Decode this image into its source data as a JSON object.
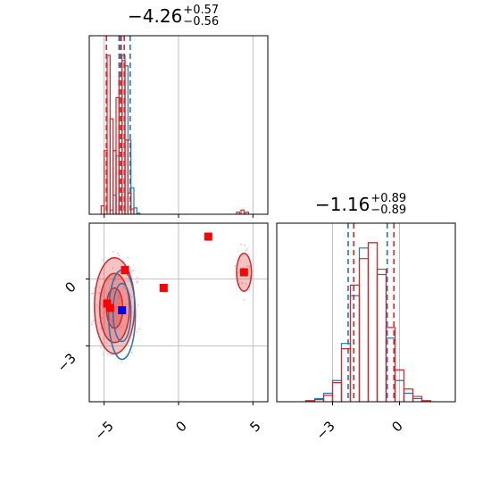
{
  "figure": {
    "type": "corner_plot",
    "colors": {
      "series_a": "#1f77b4",
      "series_b": "#d62728",
      "pink": "#f4a6c1",
      "grid": "#b0b0b0"
    }
  },
  "titles": [
    {
      "value": "−4.26",
      "plus": "+0.57",
      "minus": "−0.56"
    },
    {
      "value": "−1.16",
      "plus": "+0.89",
      "minus": "−0.89"
    }
  ],
  "chart_data": [
    {
      "type": "histogram",
      "panel": "top-left marginal",
      "xlim": [
        -6,
        6
      ],
      "grid": true,
      "series": [
        {
          "color": "#1f77b4",
          "x": [
            -4.5,
            -4.3,
            -4.1,
            -3.9,
            -3.7,
            -3.5,
            -3.3,
            -3.1,
            -2.9,
            -2.7
          ],
          "values": [
            4,
            18,
            55,
            110,
            150,
            140,
            70,
            25,
            6,
            1
          ],
          "quantile_lines": [
            -4.0,
            -3.85,
            -3.25
          ]
        },
        {
          "color": "#d62728",
          "x": [
            -5.1,
            -4.9,
            -4.7,
            -4.5,
            -4.3,
            -4.1,
            -3.9,
            -3.7,
            -3.5,
            -3.3,
            -3.1,
            4.0,
            4.3,
            4.6
          ],
          "values": [
            8,
            60,
            150,
            90,
            60,
            110,
            130,
            145,
            70,
            20,
            5,
            2,
            4,
            2
          ],
          "quantile_lines": [
            -4.85,
            -3.9,
            -3.65
          ]
        }
      ]
    },
    {
      "type": "histogram",
      "panel": "bottom-right marginal",
      "xlim": [
        -5.5,
        2.5
      ],
      "xticks": [
        -3,
        0
      ],
      "xtick_labels": [
        "−3",
        "0"
      ],
      "grid": true,
      "series": [
        {
          "color": "#1f77b4",
          "quantile_lines": [
            -2.3,
            -0.55
          ],
          "x": [
            -4.0,
            -3.6,
            -3.2,
            -2.8,
            -2.4,
            -2.0,
            -1.6,
            -1.2,
            -0.8,
            -0.4,
            0.0,
            0.4,
            0.8,
            1.2
          ],
          "values": [
            1,
            3,
            8,
            20,
            55,
            100,
            145,
            150,
            120,
            60,
            20,
            8,
            3,
            1
          ]
        },
        {
          "color": "#d62728",
          "quantile_lines": [
            -2.05,
            -0.25
          ],
          "x": [
            -4.0,
            -3.6,
            -3.2,
            -2.8,
            -2.4,
            -2.0,
            -1.6,
            -1.2,
            -0.8,
            -0.4,
            0.0,
            0.4,
            0.8,
            1.2
          ],
          "values": [
            1,
            2,
            6,
            18,
            50,
            110,
            135,
            150,
            125,
            70,
            30,
            12,
            5,
            1
          ]
        }
      ]
    },
    {
      "type": "scatter",
      "panel": "bottom-left 2D",
      "xlim": [
        -6,
        6
      ],
      "ylim": [
        -5.5,
        2.5
      ],
      "xticks": [
        -5,
        0,
        5
      ],
      "xtick_labels": [
        "−5",
        "0",
        "5"
      ],
      "yticks": [
        0,
        -3
      ],
      "ytick_labels": [
        "0",
        "−3"
      ],
      "grid": true,
      "markers": [
        {
          "color": "#ff0000",
          "x": 2.0,
          "y": 1.9
        },
        {
          "color": "#ff0000",
          "x": 4.4,
          "y": 0.3
        },
        {
          "color": "#ff0000",
          "x": -1.0,
          "y": -0.4
        },
        {
          "color": "#ff0000",
          "x": -3.6,
          "y": 0.4
        },
        {
          "color": "#ff0000",
          "x": -4.8,
          "y": -1.1
        },
        {
          "color": "#ff0000",
          "x": -4.6,
          "y": -1.3
        },
        {
          "color": "#0000ff",
          "x": -3.8,
          "y": -1.4
        }
      ],
      "contours": [
        {
          "color": "#d62728",
          "center": [
            -4.3,
            -1.2
          ],
          "radius": [
            1.35,
            2.15
          ],
          "filled": true
        },
        {
          "color": "#d62728",
          "center": [
            -4.3,
            -1.3
          ],
          "radius": [
            1.0,
            1.55
          ],
          "filled": true
        },
        {
          "color": "#d62728",
          "center": [
            -4.3,
            -1.3
          ],
          "radius": [
            0.55,
            0.9
          ],
          "filled": true
        },
        {
          "color": "#1f77b4",
          "center": [
            -3.8,
            -1.6
          ],
          "radius": [
            0.9,
            2.0
          ],
          "filled": false
        },
        {
          "color": "#1f77b4",
          "center": [
            -3.8,
            -1.5
          ],
          "radius": [
            0.6,
            1.3
          ],
          "filled": false
        },
        {
          "color": "#d62728",
          "center": [
            4.4,
            0.3
          ],
          "radius": [
            0.5,
            0.85
          ],
          "filled": true
        }
      ]
    }
  ]
}
